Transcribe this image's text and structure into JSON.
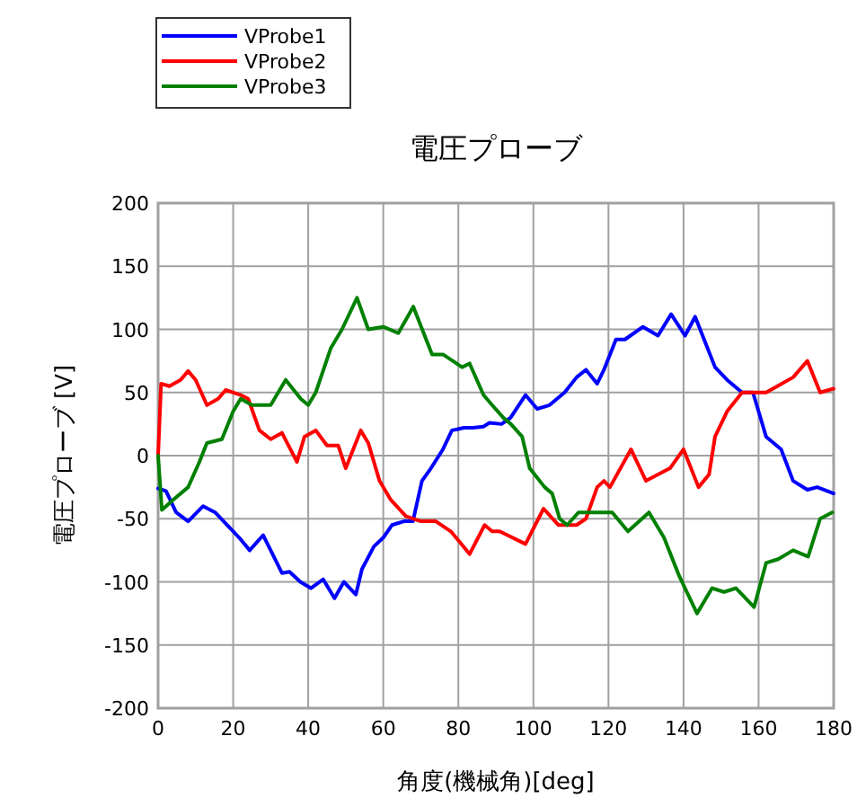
{
  "chart_data": {
    "type": "line",
    "title": "電圧プローブ",
    "xlabel": "角度(機械角)[deg]",
    "ylabel": "電圧プローブ [V]",
    "xlim": [
      0,
      180
    ],
    "ylim": [
      -200,
      200
    ],
    "xticks": [
      0,
      20,
      40,
      60,
      80,
      100,
      120,
      140,
      160,
      180
    ],
    "yticks": [
      -200,
      -150,
      -100,
      -50,
      0,
      50,
      100,
      150,
      200
    ],
    "grid": true,
    "legend": "top left",
    "series": [
      {
        "name": "VProbe1",
        "color": "#0000ff",
        "x": [
          0,
          2.1,
          4.8,
          8,
          12,
          15.2,
          21.6,
          24.4,
          28,
          33,
          35,
          37.9,
          40.7,
          44,
          47,
          49.5,
          52.7,
          54.3,
          57.5,
          60,
          62.3,
          65.5,
          67.9,
          70.3,
          72.7,
          75.9,
          78.3,
          81.5,
          83.9,
          86.7,
          88.3,
          91.5,
          93.9,
          97.9,
          101,
          104.3,
          108.3,
          111.5,
          114,
          117,
          118.8,
          122,
          124.4,
          129.2,
          133.2,
          136.7,
          140.4,
          143.1,
          148.4,
          151.6,
          155.6,
          158.5,
          162,
          166,
          169.2,
          173,
          175.6,
          180
        ],
        "values": [
          -26,
          -28,
          -45,
          -52,
          -40,
          -45,
          -65,
          -75,
          -63,
          -93,
          -92,
          -100,
          -105,
          -98,
          -113,
          -100,
          -110,
          -90,
          -72,
          -65,
          -55,
          -52,
          -52,
          -20,
          -10,
          5,
          20,
          22,
          22,
          23,
          26,
          25,
          30,
          48,
          37,
          40,
          50,
          62,
          68,
          57,
          68,
          92,
          92,
          102,
          95,
          112,
          95,
          110,
          70,
          60,
          50,
          50,
          15,
          5,
          -20,
          -27,
          -25,
          -30
        ]
      },
      {
        "name": "VProbe2",
        "color": "#ff0000",
        "x": [
          0,
          0.8,
          3,
          6,
          8,
          10,
          13,
          16,
          18,
          22,
          24,
          27,
          30,
          33,
          37,
          39,
          42,
          45,
          48,
          50,
          54,
          56,
          59,
          62,
          66,
          70,
          74,
          78,
          83,
          87,
          89,
          91,
          97.9,
          102.7,
          106.7,
          111.5,
          114,
          117,
          118.8,
          120.4,
          126,
          130,
          133.2,
          136.4,
          140,
          144,
          146.8,
          148.4,
          151.6,
          155.6,
          162,
          165,
          169.2,
          173,
          176.4,
          180
        ],
        "values": [
          0,
          57,
          55,
          60,
          67,
          60,
          40,
          45,
          52,
          48,
          45,
          20,
          13,
          18,
          -5,
          15,
          20,
          8,
          8,
          -10,
          20,
          10,
          -20,
          -35,
          -48,
          -52,
          -52,
          -60,
          -78,
          -55,
          -60,
          -60,
          -70,
          -42,
          -55,
          -55,
          -50,
          -25,
          -20,
          -25,
          5,
          -20,
          -15,
          -10,
          5,
          -25,
          -15,
          15,
          35,
          50,
          50,
          55,
          62,
          75,
          50,
          53
        ]
      },
      {
        "name": "VProbe3",
        "color": "#008000",
        "x": [
          0,
          1,
          4,
          8,
          11,
          13,
          17,
          20,
          22,
          25,
          30,
          34,
          38,
          40,
          42,
          46,
          49,
          53,
          56,
          60,
          64,
          68,
          73,
          76,
          81,
          83,
          86.7,
          89,
          92,
          94,
          97,
          99,
          103,
          105,
          107,
          109,
          112,
          114,
          121,
          125.2,
          130.8,
          134.8,
          138.8,
          143.6,
          147.6,
          150.8,
          154,
          158.8,
          162,
          165.2,
          169.2,
          173.2,
          176.4,
          179.6
        ],
        "values": [
          0,
          -43,
          -35,
          -25,
          -5,
          10,
          13,
          35,
          45,
          40,
          40,
          60,
          45,
          40,
          50,
          85,
          100,
          125,
          100,
          102,
          97,
          118,
          80,
          80,
          70,
          73,
          48,
          40,
          30,
          25,
          15,
          -10,
          -25,
          -30,
          -50,
          -55,
          -45,
          -45,
          -45,
          -60,
          -45,
          -65,
          -95,
          -125,
          -105,
          -108,
          -105,
          -120,
          -85,
          -82,
          -75,
          -80,
          -50,
          -45
        ]
      }
    ]
  }
}
